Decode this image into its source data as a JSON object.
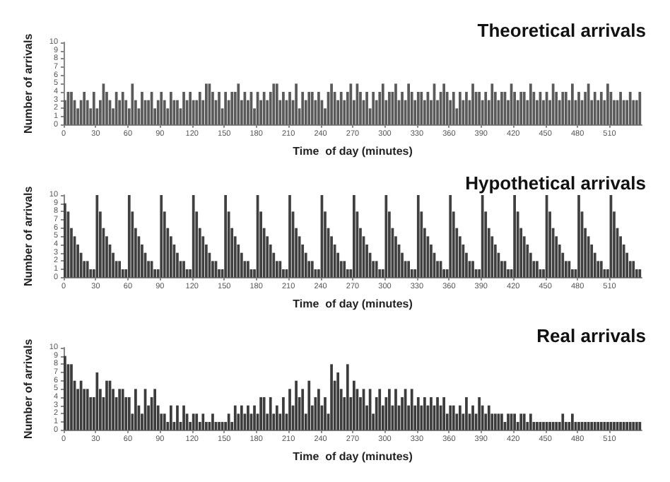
{
  "chart_data": [
    {
      "type": "histogram",
      "title": "Theoretical arrivals",
      "xlabel": "Time  of day (minutes)",
      "ylabel": "Number of arrivals",
      "color": "#5a5a5a",
      "xlim": [
        0,
        540
      ],
      "xticks": [
        0,
        30,
        60,
        90,
        120,
        150,
        180,
        210,
        240,
        270,
        300,
        330,
        360,
        390,
        420,
        450,
        480,
        510
      ],
      "ylim": [
        0,
        10
      ],
      "yticks": [
        0,
        1,
        2,
        3,
        4,
        5,
        6,
        7,
        8,
        9,
        10
      ],
      "bins": [
        0,
        3,
        6,
        9,
        12,
        15,
        18,
        21,
        24,
        27,
        30,
        33,
        36,
        39,
        42,
        45,
        48,
        51,
        54,
        57,
        60,
        63,
        66,
        69,
        72,
        75,
        78,
        81,
        84,
        87,
        90,
        93,
        96,
        99,
        102,
        105,
        108,
        111,
        114,
        117,
        120,
        123,
        126,
        129,
        132,
        135,
        138,
        141,
        144,
        147,
        150,
        153,
        156,
        159,
        162,
        165,
        168,
        171,
        174,
        177,
        180,
        183,
        186,
        189,
        192,
        195,
        198,
        201,
        204,
        207,
        210,
        213,
        216,
        219,
        222,
        225,
        228,
        231,
        234,
        237,
        240,
        243,
        246,
        249,
        252,
        255,
        258,
        261,
        264,
        267,
        270,
        273,
        276,
        279,
        282,
        285,
        288,
        291,
        294,
        297,
        300,
        303,
        306,
        309,
        312,
        315,
        318,
        321,
        324,
        327,
        330,
        333,
        336,
        339,
        342,
        345,
        348,
        351,
        354,
        357,
        360,
        363,
        366,
        369,
        372,
        375,
        378,
        381,
        384,
        387,
        390,
        393,
        396,
        399,
        402,
        405,
        408,
        411,
        414,
        417,
        420,
        423,
        426,
        429,
        432,
        435,
        438,
        441,
        444,
        447,
        450,
        453,
        456,
        459,
        462,
        465,
        468,
        471,
        474,
        477,
        480,
        483,
        486,
        489,
        492,
        495,
        498,
        501,
        504,
        507,
        510,
        513,
        516,
        519,
        522,
        525,
        528,
        531,
        534,
        537,
        540
      ],
      "values": [
        3,
        4,
        4,
        3,
        2,
        3,
        4,
        3,
        2,
        4,
        2,
        3,
        5,
        4,
        3,
        2,
        4,
        3,
        4,
        3,
        2,
        5,
        3,
        2,
        4,
        3,
        3,
        4,
        2,
        3,
        4,
        3,
        2,
        4,
        3,
        3,
        2,
        4,
        3,
        4,
        3,
        3,
        4,
        3,
        5,
        5,
        4,
        3,
        4,
        2,
        4,
        3,
        4,
        4,
        5,
        3,
        4,
        3,
        4,
        2,
        4,
        3,
        4,
        3,
        4,
        5,
        5,
        3,
        4,
        3,
        4,
        3,
        5,
        2,
        4,
        3,
        4,
        4,
        3,
        4,
        3,
        2,
        4,
        5,
        4,
        3,
        4,
        3,
        4,
        5,
        3,
        5,
        4,
        3,
        4,
        2,
        4,
        3,
        4,
        5,
        3,
        4,
        4,
        5,
        3,
        4,
        3,
        5,
        4,
        3,
        4,
        4,
        3,
        4,
        3,
        5,
        3,
        4,
        5,
        4,
        3,
        4,
        2,
        4,
        3,
        4,
        3,
        5,
        4,
        4,
        3,
        4,
        3,
        5,
        4,
        3,
        4,
        4,
        3,
        5,
        4,
        3,
        4,
        4,
        3,
        5,
        4,
        3,
        4,
        3,
        4,
        3,
        5,
        4,
        3,
        4,
        4,
        3,
        5,
        3,
        4,
        3,
        4,
        5,
        3,
        4,
        3,
        4,
        3,
        5,
        4,
        3,
        3,
        4,
        3,
        3,
        4,
        3,
        3,
        4
      ]
    },
    {
      "type": "histogram",
      "title": "Hypothetical arrivals",
      "xlabel": "Time  of day (minutes)",
      "ylabel": "Number of arrivals",
      "color": "#404040",
      "xlim": [
        0,
        540
      ],
      "xticks": [
        0,
        30,
        60,
        90,
        120,
        150,
        180,
        210,
        240,
        270,
        300,
        330,
        360,
        390,
        420,
        450,
        480,
        510
      ],
      "ylim": [
        0,
        10
      ],
      "yticks": [
        0,
        1,
        2,
        3,
        4,
        5,
        6,
        7,
        8,
        9,
        10
      ],
      "bins": [
        0,
        3,
        6,
        9,
        12,
        15,
        18,
        21,
        24,
        27,
        30,
        33,
        36,
        39,
        42,
        45,
        48,
        51,
        54,
        57,
        60,
        63,
        66,
        69,
        72,
        75,
        78,
        81,
        84,
        87,
        90,
        93,
        96,
        99,
        102,
        105,
        108,
        111,
        114,
        117,
        120,
        123,
        126,
        129,
        132,
        135,
        138,
        141,
        144,
        147,
        150,
        153,
        156,
        159,
        162,
        165,
        168,
        171,
        174,
        177,
        180,
        183,
        186,
        189,
        192,
        195,
        198,
        201,
        204,
        207,
        210,
        213,
        216,
        219,
        222,
        225,
        228,
        231,
        234,
        237,
        240,
        243,
        246,
        249,
        252,
        255,
        258,
        261,
        264,
        267,
        270,
        273,
        276,
        279,
        282,
        285,
        288,
        291,
        294,
        297,
        300,
        303,
        306,
        309,
        312,
        315,
        318,
        321,
        324,
        327,
        330,
        333,
        336,
        339,
        342,
        345,
        348,
        351,
        354,
        357,
        360,
        363,
        366,
        369,
        372,
        375,
        378,
        381,
        384,
        387,
        390,
        393,
        396,
        399,
        402,
        405,
        408,
        411,
        414,
        417,
        420,
        423,
        426,
        429,
        432,
        435,
        438,
        441,
        444,
        447,
        450,
        453,
        456,
        459,
        462,
        465,
        468,
        471,
        474,
        477,
        480,
        483,
        486,
        489,
        492,
        495,
        498,
        501,
        504,
        507,
        510,
        513,
        516,
        519,
        522,
        525,
        528,
        531,
        534,
        537,
        540
      ],
      "values": [
        9,
        8,
        6,
        5,
        4,
        3,
        2,
        2,
        1,
        1,
        10,
        8,
        6,
        5,
        4,
        3,
        2,
        2,
        1,
        1,
        10,
        8,
        6,
        5,
        4,
        3,
        2,
        2,
        1,
        1,
        10,
        8,
        6,
        5,
        4,
        3,
        2,
        2,
        1,
        1,
        10,
        8,
        6,
        5,
        4,
        3,
        2,
        2,
        1,
        1,
        10,
        8,
        6,
        5,
        4,
        3,
        2,
        2,
        1,
        1,
        10,
        8,
        6,
        5,
        4,
        3,
        2,
        2,
        1,
        1,
        10,
        8,
        6,
        5,
        4,
        3,
        2,
        2,
        1,
        1,
        10,
        8,
        6,
        5,
        4,
        3,
        2,
        2,
        1,
        1,
        10,
        8,
        6,
        5,
        4,
        3,
        2,
        2,
        1,
        1,
        10,
        8,
        6,
        5,
        4,
        3,
        2,
        2,
        1,
        1,
        10,
        8,
        6,
        5,
        4,
        3,
        2,
        2,
        1,
        1,
        10,
        8,
        6,
        5,
        4,
        3,
        2,
        2,
        1,
        1,
        10,
        8,
        6,
        5,
        4,
        3,
        2,
        2,
        1,
        1,
        10,
        8,
        6,
        5,
        4,
        3,
        2,
        2,
        1,
        1,
        10,
        8,
        6,
        5,
        4,
        3,
        2,
        2,
        1,
        1,
        10,
        8,
        6,
        5,
        4,
        3,
        2,
        2,
        1,
        1,
        10,
        8,
        6,
        5,
        4,
        3,
        2,
        2,
        1,
        1
      ]
    },
    {
      "type": "histogram",
      "title": "Real arrivals",
      "xlabel": "Time  of day (minutes)",
      "ylabel": "Number of arrivals",
      "color": "#3c3c3c",
      "xlim": [
        0,
        540
      ],
      "xticks": [
        0,
        30,
        60,
        90,
        120,
        150,
        180,
        210,
        240,
        270,
        300,
        330,
        360,
        390,
        420,
        450,
        480,
        510
      ],
      "ylim": [
        0,
        10
      ],
      "yticks": [
        0,
        1,
        2,
        3,
        4,
        5,
        6,
        7,
        8,
        9,
        10
      ],
      "bins": [
        0,
        3,
        6,
        9,
        12,
        15,
        18,
        21,
        24,
        27,
        30,
        33,
        36,
        39,
        42,
        45,
        48,
        51,
        54,
        57,
        60,
        63,
        66,
        69,
        72,
        75,
        78,
        81,
        84,
        87,
        90,
        93,
        96,
        99,
        102,
        105,
        108,
        111,
        114,
        117,
        120,
        123,
        126,
        129,
        132,
        135,
        138,
        141,
        144,
        147,
        150,
        153,
        156,
        159,
        162,
        165,
        168,
        171,
        174,
        177,
        180,
        183,
        186,
        189,
        192,
        195,
        198,
        201,
        204,
        207,
        210,
        213,
        216,
        219,
        222,
        225,
        228,
        231,
        234,
        237,
        240,
        243,
        246,
        249,
        252,
        255,
        258,
        261,
        264,
        267,
        270,
        273,
        276,
        279,
        282,
        285,
        288,
        291,
        294,
        297,
        300,
        303,
        306,
        309,
        312,
        315,
        318,
        321,
        324,
        327,
        330,
        333,
        336,
        339,
        342,
        345,
        348,
        351,
        354,
        357,
        360,
        363,
        366,
        369,
        372,
        375,
        378,
        381,
        384,
        387,
        390,
        393,
        396,
        399,
        402,
        405,
        408,
        411,
        414,
        417,
        420,
        423,
        426,
        429,
        432,
        435,
        438,
        441,
        444,
        447,
        450,
        453,
        456,
        459,
        462,
        465,
        468,
        471,
        474,
        477,
        480,
        483,
        486,
        489,
        492,
        495,
        498,
        501,
        504,
        507,
        510,
        513,
        516,
        519,
        522,
        525,
        528,
        531,
        534,
        537,
        540
      ],
      "values": [
        9,
        8,
        8,
        6,
        5,
        6,
        5,
        5,
        4,
        4,
        7,
        5,
        4,
        6,
        6,
        5,
        4,
        5,
        5,
        4,
        4,
        2,
        5,
        3,
        2,
        5,
        3,
        4,
        5,
        3,
        2,
        2,
        1,
        3,
        1,
        3,
        1,
        3,
        2,
        1,
        2,
        2,
        1,
        2,
        1,
        1,
        2,
        1,
        1,
        1,
        1,
        2,
        1,
        3,
        2,
        3,
        2,
        3,
        2,
        3,
        2,
        4,
        4,
        2,
        4,
        2,
        3,
        2,
        4,
        2,
        5,
        3,
        6,
        4,
        5,
        2,
        6,
        3,
        4,
        5,
        3,
        4,
        2,
        8,
        6,
        7,
        5,
        4,
        8,
        4,
        6,
        5,
        4,
        5,
        3,
        5,
        2,
        4,
        5,
        3,
        4,
        5,
        3,
        5,
        3,
        4,
        5,
        3,
        5,
        3,
        4,
        3,
        4,
        3,
        4,
        3,
        4,
        3,
        4,
        2,
        3,
        3,
        2,
        3,
        2,
        4,
        2,
        3,
        2,
        4,
        3,
        2,
        3,
        2,
        2,
        2,
        2,
        1,
        2,
        2,
        2,
        1,
        2,
        2,
        1,
        2,
        1,
        1,
        1,
        1,
        1,
        1,
        1,
        1,
        1,
        2,
        1,
        1,
        2,
        1,
        1,
        1,
        1,
        1,
        1,
        1,
        1,
        1,
        1,
        1,
        1,
        1,
        1,
        1,
        1,
        1,
        1,
        1,
        1,
        1
      ]
    }
  ]
}
